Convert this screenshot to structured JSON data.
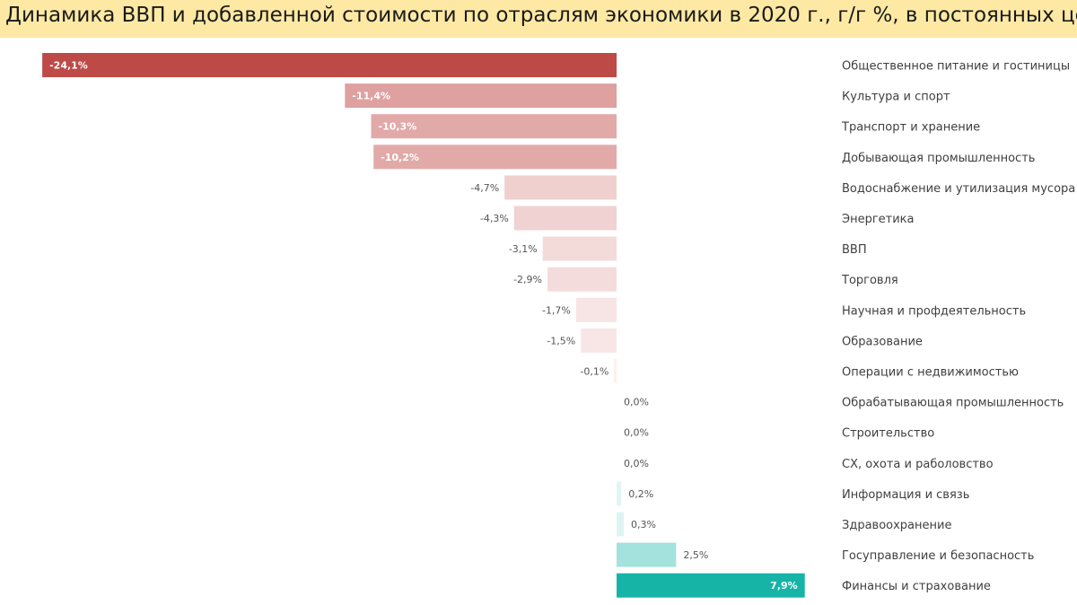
{
  "chart_data": {
    "type": "bar",
    "orientation": "horizontal",
    "title": "Динамика ВВП и добавленной стоимости по отраслям экономики в 2020 г., г/г %, в постоянных ценах",
    "categories": [
      "Общественное питание и гостиницы",
      "Культура и спорт",
      "Транспорт и хранение",
      "Добывающая промышленность",
      "Водоснабжение и утилизация мусора",
      "Энергетика",
      "ВВП",
      "Торговля",
      "Научная и профдеятельность",
      "Образование",
      "Операции с недвижимостью",
      "Обрабатывающая промышленность",
      "Строительство",
      "СХ, охота и раболовство",
      "Информация и связь",
      "Здравоохранение",
      "Госуправление и безопасность",
      "Финансы и страхование"
    ],
    "values": [
      -24.1,
      -11.4,
      -10.3,
      -10.2,
      -4.7,
      -4.3,
      -3.1,
      -2.9,
      -1.7,
      -1.5,
      -0.1,
      0.0,
      0.0,
      0.0,
      0.2,
      0.3,
      2.5,
      7.9
    ],
    "value_labels": [
      "-24,1%",
      "-11,4%",
      "-10,3%",
      "-10,2%",
      "-4,7%",
      "-4,3%",
      "-3,1%",
      "-2,9%",
      "-1,7%",
      "-1,5%",
      "-0,1%",
      "0,0%",
      "0,0%",
      "0,0%",
      "0,2%",
      "0,3%",
      "2,5%",
      "7,9%"
    ],
    "xlim": [
      -24.1,
      7.9
    ],
    "grid": false,
    "legend": "none",
    "colors": {
      "negative_max": "#be4a47",
      "negative_min": "#fbf0f0",
      "positive_min": "#e6f7f6",
      "positive_max": "#15b4a6",
      "title_background": "#fde9a4"
    }
  }
}
